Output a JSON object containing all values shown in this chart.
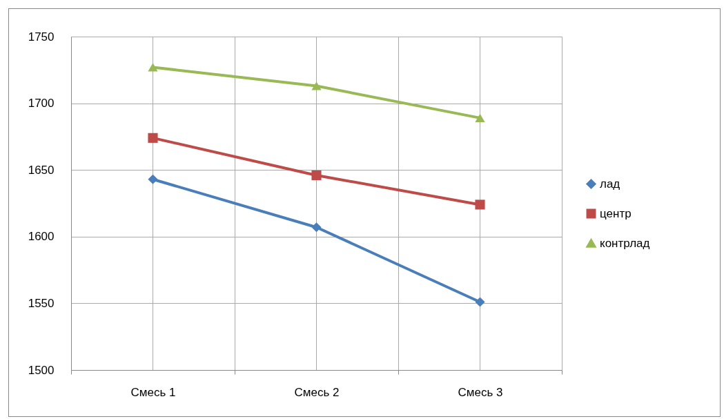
{
  "chart_data": {
    "type": "line",
    "categories": [
      "Смесь 1",
      "Смесь 2",
      "Смесь 3"
    ],
    "series": [
      {
        "name": "лад",
        "color": "#4a7ebb",
        "marker": "diamond",
        "values": [
          1643,
          1607,
          1551
        ]
      },
      {
        "name": "центр",
        "color": "#be4b48",
        "marker": "square",
        "values": [
          1674,
          1646,
          1624
        ]
      },
      {
        "name": "контрлад",
        "color": "#98b954",
        "marker": "triangle",
        "values": [
          1727,
          1713,
          1689
        ]
      }
    ],
    "ylim": [
      1500,
      1750
    ],
    "yticks": [
      1500,
      1550,
      1600,
      1650,
      1700,
      1750
    ],
    "grid": true,
    "legend": "right"
  }
}
